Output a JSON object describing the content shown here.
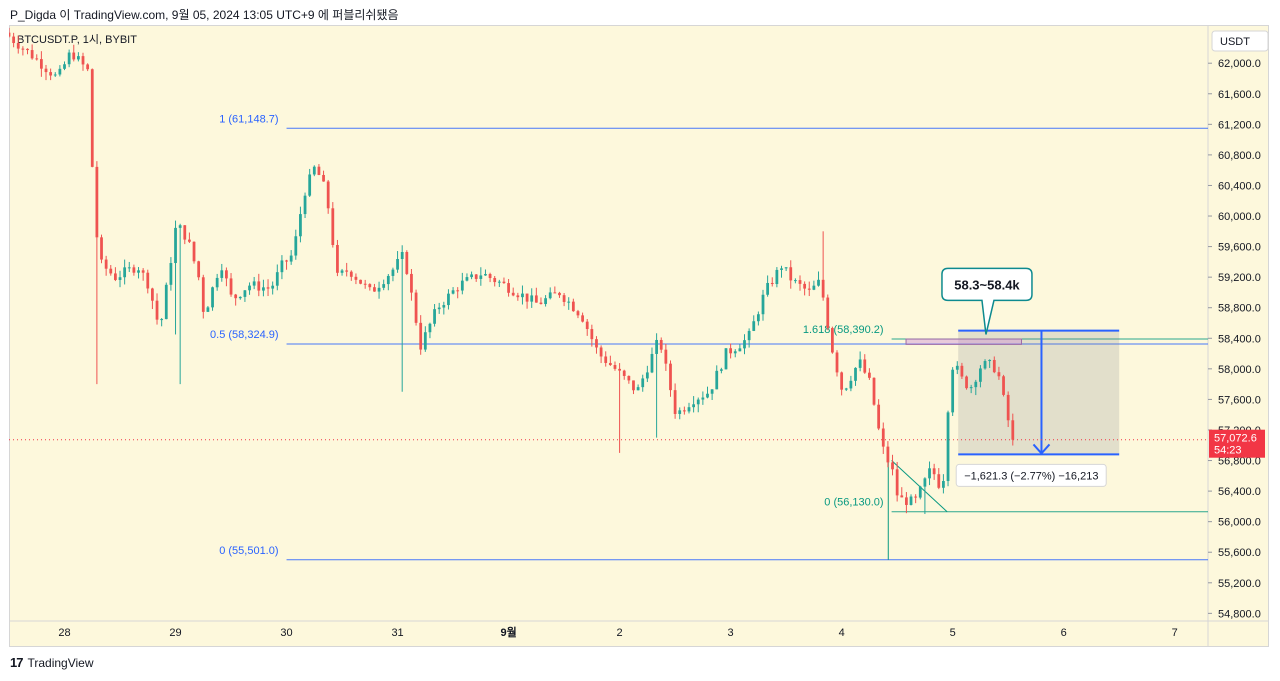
{
  "header": {
    "caption": "P_Digda 이 TradingView.com, 9월 05, 2024 13:05 UTC+9 에 퍼블리쉬됐음"
  },
  "footer": {
    "brand": "TradingView",
    "logo_glyph": "17"
  },
  "chart_data": {
    "type": "candlestick",
    "symbol_label": "BTCUSDT.P, 1시, BYBIT",
    "currency_label": "USDT",
    "colors": {
      "up": "#26a69a",
      "down": "#ef5350",
      "bg": "#fdf8dc",
      "fib": "#2962ff",
      "fib_text": "#2962ff",
      "fib2": "#089981",
      "last_price": "#f23645"
    },
    "y_axis": {
      "min": 54700,
      "max": 62500,
      "ticks": [
        62000,
        61600,
        61200,
        60800,
        60400,
        60000,
        59600,
        59200,
        58800,
        58400,
        58000,
        57600,
        57200,
        56800,
        56400,
        56000,
        55600,
        55200,
        54800
      ],
      "tick_labels": [
        "62,000.0",
        "61,600.0",
        "61,200.0",
        "60,800.0",
        "60,400.0",
        "60,000.0",
        "59,600.0",
        "59,200.0",
        "58,800.0",
        "58,400.0",
        "58,000.0",
        "57,600.0",
        "57,200.0",
        "56,800.0",
        "56,400.0",
        "56,000.0",
        "55,600.0",
        "55,200.0",
        "54,800.0"
      ]
    },
    "x_axis": {
      "min": 27.5,
      "max": 38.3,
      "ticks": [
        {
          "pos": 28,
          "label": "28"
        },
        {
          "pos": 29,
          "label": "29"
        },
        {
          "pos": 30,
          "label": "30"
        },
        {
          "pos": 31,
          "label": "31"
        },
        {
          "pos": 32,
          "label": "9월",
          "bold": true
        },
        {
          "pos": 33,
          "label": "2"
        },
        {
          "pos": 34,
          "label": "3"
        },
        {
          "pos": 35,
          "label": "4"
        },
        {
          "pos": 36,
          "label": "5"
        },
        {
          "pos": 37,
          "label": "6"
        },
        {
          "pos": 38,
          "label": "7"
        }
      ]
    },
    "anchors": [
      {
        "t": 27.5,
        "p": 62400
      },
      {
        "t": 27.75,
        "p": 62100
      },
      {
        "t": 27.98,
        "p": 61800
      },
      {
        "t": 28.1,
        "p": 62150
      },
      {
        "t": 28.25,
        "p": 61900
      },
      {
        "t": 28.3,
        "p": 60400
      },
      {
        "t": 28.35,
        "p": 59400
      },
      {
        "t": 28.5,
        "p": 59200
      },
      {
        "t": 28.7,
        "p": 59350
      },
      {
        "t": 28.8,
        "p": 59100
      },
      {
        "t": 28.9,
        "p": 58500
      },
      {
        "t": 29.05,
        "p": 59900
      },
      {
        "t": 29.15,
        "p": 59700
      },
      {
        "t": 29.25,
        "p": 59200
      },
      {
        "t": 29.3,
        "p": 58700
      },
      {
        "t": 29.45,
        "p": 59400
      },
      {
        "t": 29.55,
        "p": 58900
      },
      {
        "t": 29.7,
        "p": 59100
      },
      {
        "t": 29.9,
        "p": 59050
      },
      {
        "t": 30.0,
        "p": 59350
      },
      {
        "t": 30.1,
        "p": 59500
      },
      {
        "t": 30.15,
        "p": 59900
      },
      {
        "t": 30.2,
        "p": 60300
      },
      {
        "t": 30.3,
        "p": 60650
      },
      {
        "t": 30.4,
        "p": 60300
      },
      {
        "t": 30.5,
        "p": 59200
      },
      {
        "t": 30.6,
        "p": 59300
      },
      {
        "t": 30.8,
        "p": 59000
      },
      {
        "t": 31.0,
        "p": 59300
      },
      {
        "t": 31.1,
        "p": 59500
      },
      {
        "t": 31.25,
        "p": 58300
      },
      {
        "t": 31.4,
        "p": 58800
      },
      {
        "t": 31.6,
        "p": 59100
      },
      {
        "t": 31.8,
        "p": 59250
      },
      {
        "t": 32.0,
        "p": 59100
      },
      {
        "t": 32.3,
        "p": 58850
      },
      {
        "t": 32.5,
        "p": 59000
      },
      {
        "t": 32.7,
        "p": 58700
      },
      {
        "t": 32.85,
        "p": 58200
      },
      {
        "t": 33.0,
        "p": 58000
      },
      {
        "t": 33.2,
        "p": 57700
      },
      {
        "t": 33.4,
        "p": 58400
      },
      {
        "t": 33.55,
        "p": 57400
      },
      {
        "t": 33.7,
        "p": 57600
      },
      {
        "t": 33.85,
        "p": 57700
      },
      {
        "t": 34.0,
        "p": 58200
      },
      {
        "t": 34.2,
        "p": 58400
      },
      {
        "t": 34.35,
        "p": 59000
      },
      {
        "t": 34.5,
        "p": 59350
      },
      {
        "t": 34.6,
        "p": 59150
      },
      {
        "t": 34.75,
        "p": 59000
      },
      {
        "t": 34.85,
        "p": 59150
      },
      {
        "t": 34.95,
        "p": 58300
      },
      {
        "t": 35.05,
        "p": 57700
      },
      {
        "t": 35.2,
        "p": 58100
      },
      {
        "t": 35.3,
        "p": 57800
      },
      {
        "t": 35.4,
        "p": 57000
      },
      {
        "t": 35.5,
        "p": 56650
      },
      {
        "t": 35.55,
        "p": 56300
      },
      {
        "t": 35.7,
        "p": 56250
      },
      {
        "t": 35.85,
        "p": 56700
      },
      {
        "t": 35.95,
        "p": 56400
      },
      {
        "t": 36.0,
        "p": 57500
      },
      {
        "t": 36.05,
        "p": 58150
      },
      {
        "t": 36.1,
        "p": 57900
      },
      {
        "t": 36.2,
        "p": 57750
      },
      {
        "t": 36.3,
        "p": 58050
      },
      {
        "t": 36.4,
        "p": 58050
      },
      {
        "t": 36.45,
        "p": 57950
      },
      {
        "t": 36.5,
        "p": 57600
      },
      {
        "t": 36.58,
        "p": 57072.6
      }
    ],
    "wick_spikes": [
      {
        "t": 28.3,
        "low": 57800
      },
      {
        "t": 29.0,
        "low": 58450
      },
      {
        "t": 29.05,
        "low": 57800
      },
      {
        "t": 31.05,
        "low": 57700
      },
      {
        "t": 33.0,
        "low": 56900
      },
      {
        "t": 33.35,
        "low": 57100
      },
      {
        "t": 34.82,
        "high": 59800
      },
      {
        "t": 35.75,
        "low": 56100
      }
    ],
    "fib_levels": [
      {
        "price": 61148.7,
        "label": "1 (61,148.7)",
        "t_start": 30.0,
        "t_end": 38.3,
        "color_key": "fib"
      },
      {
        "price": 58324.9,
        "label": "0.5 (58,324.9)",
        "t_start": 30.0,
        "t_end": 38.3,
        "color_key": "fib"
      },
      {
        "price": 55501.0,
        "label": "0 (55,501.0)",
        "t_start": 30.0,
        "t_end": 38.3,
        "color_key": "fib"
      },
      {
        "price": 58390.2,
        "label": "1.618 (58,390.2)",
        "t_start": 35.45,
        "t_end": 38.3,
        "color_key": "fib2"
      },
      {
        "price": 56130.0,
        "label": "0 (56,130.0)",
        "t_start": 35.45,
        "t_end": 38.3,
        "color_key": "fib2"
      }
    ],
    "trend_line": {
      "t1": 35.45,
      "p1": 56800,
      "t2": 35.95,
      "p2": 56130,
      "vertical_t": 35.42,
      "vertical_low": 55501
    },
    "target_zone": {
      "t_start": 35.58,
      "t_end": 36.62,
      "p_top": 58390,
      "p_bottom": 58320
    },
    "measure_box": {
      "t_start": 36.05,
      "t_end": 37.5,
      "p_top": 58500,
      "p_bottom": 56880,
      "arrow_t": 36.8
    },
    "measure_label": "−1,621.3 (−2.77%) −16,213",
    "callout": {
      "text": "58.3~58.4k",
      "t": 36.3,
      "p": 59000
    },
    "last_price": {
      "value": 57072.6,
      "label": "57,072.6",
      "countdown": "54:23"
    }
  }
}
